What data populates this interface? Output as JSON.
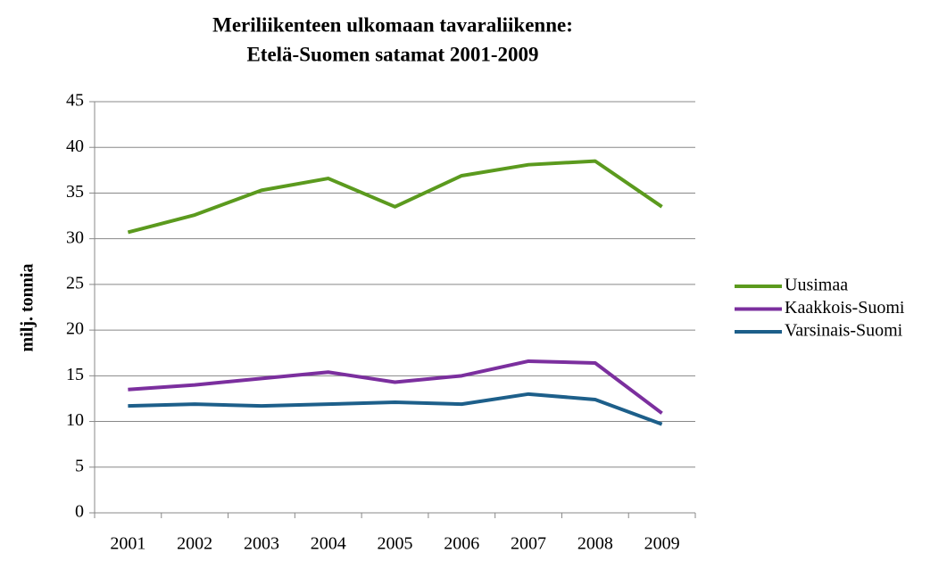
{
  "chart_data": {
    "type": "line",
    "title": "Meriliikenteen ulkomaan tavaraliikenne:",
    "subtitle": "Etelä-Suomen satamat 2001-2009",
    "y_label": "milj. tonnia",
    "categories": [
      "2001",
      "2002",
      "2003",
      "2004",
      "2005",
      "2006",
      "2007",
      "2008",
      "2009"
    ],
    "series": [
      {
        "name": "Uusimaa",
        "color": "#5b9a1e",
        "values": [
          30.7,
          32.6,
          35.3,
          36.6,
          33.5,
          36.9,
          38.1,
          38.5,
          33.5
        ]
      },
      {
        "name": "Kaakkois-Suomi",
        "color": "#7b2f9e",
        "values": [
          13.5,
          14.0,
          14.7,
          15.4,
          14.3,
          15.0,
          16.6,
          16.4,
          10.9
        ]
      },
      {
        "name": "Varsinais-Suomi",
        "color": "#1d5f8a",
        "values": [
          11.7,
          11.9,
          11.7,
          11.9,
          12.1,
          11.9,
          13.0,
          12.4,
          9.7
        ]
      }
    ],
    "ylim": [
      0,
      45
    ],
    "yticks": [
      0,
      5,
      10,
      15,
      20,
      25,
      30,
      35,
      40,
      45
    ],
    "grid": true,
    "legend": "right"
  }
}
